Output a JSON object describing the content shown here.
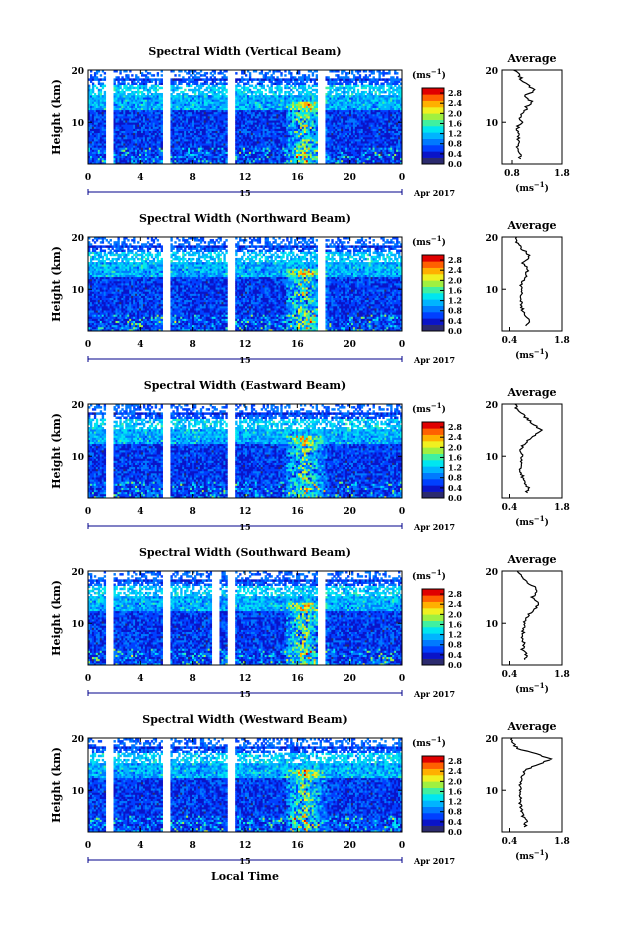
{
  "x_label": "Local Time",
  "date_label": "Apr 2017",
  "day_label": "15",
  "y_label": "Height (km)",
  "unit_label": "(ms",
  "unit_exp": "−1",
  "avg_title": "Average",
  "colors": {
    "scale": [
      "#2b2a6e",
      "#0a14c8",
      "#0040ff",
      "#007aff",
      "#00b4ff",
      "#00e6f0",
      "#40f0a0",
      "#a0f040",
      "#f0f020",
      "#ffb000",
      "#ff6000",
      "#e00000"
    ],
    "line": "#000000",
    "tick": "#00008b"
  },
  "chart_data": [
    {
      "type": "heatmap",
      "title": "Spectral Width (Vertical Beam)",
      "x_ticks": [
        "0",
        "4",
        "8",
        "12",
        "16",
        "20",
        "0"
      ],
      "y_ticks": [
        "20",
        "10"
      ],
      "xlim": [
        0,
        24
      ],
      "ylim": [
        2,
        20
      ],
      "colorbar_ticks": [
        "2.8",
        "2.4",
        "2.0",
        "1.6",
        "1.2",
        "0.8",
        "0.4",
        "0.0"
      ],
      "gap_hours": [
        1.5,
        5.9,
        10.8,
        17.8
      ],
      "avg": {
        "x_ticks": [
          "0.8",
          "1.8"
        ],
        "y_ticks": [
          "20",
          "10"
        ],
        "xlim": [
          0.6,
          1.8
        ],
        "heights": [
          3,
          4,
          5,
          6,
          7,
          8,
          9,
          10,
          11,
          12,
          13,
          14,
          15,
          16,
          17,
          18,
          19,
          20
        ],
        "values": [
          0.95,
          0.98,
          0.92,
          0.95,
          0.93,
          0.9,
          0.92,
          0.98,
          0.95,
          1.05,
          1.1,
          1.2,
          1.05,
          1.25,
          1.15,
          1.0,
          0.95,
          0.85
        ]
      }
    },
    {
      "type": "heatmap",
      "title": "Spectral Width (Northward Beam)",
      "x_ticks": [
        "0",
        "4",
        "8",
        "12",
        "16",
        "20",
        "0"
      ],
      "y_ticks": [
        "20",
        "10"
      ],
      "xlim": [
        0,
        24
      ],
      "ylim": [
        2,
        20
      ],
      "colorbar_ticks": [
        "2.8",
        "2.4",
        "2.0",
        "1.6",
        "1.2",
        "0.8",
        "0.4",
        "0.0"
      ],
      "gap_hours": [
        5.9,
        10.8,
        17.8
      ],
      "avg": {
        "x_ticks": [
          "0.4",
          "1.8"
        ],
        "y_ticks": [
          "20",
          "10"
        ],
        "xlim": [
          0.2,
          1.8
        ],
        "heights": [
          3,
          4,
          5,
          6,
          7,
          8,
          9,
          10,
          11,
          12,
          13,
          14,
          15,
          16,
          17,
          18,
          19,
          20
        ],
        "values": [
          0.8,
          0.95,
          0.8,
          0.75,
          0.72,
          0.7,
          0.72,
          0.75,
          0.7,
          0.8,
          0.85,
          0.9,
          0.75,
          0.95,
          0.85,
          0.7,
          0.6,
          0.55
        ]
      }
    },
    {
      "type": "heatmap",
      "title": "Spectral Width (Eastward Beam)",
      "x_ticks": [
        "0",
        "4",
        "8",
        "12",
        "16",
        "20",
        "0"
      ],
      "y_ticks": [
        "20",
        "10"
      ],
      "xlim": [
        0,
        24
      ],
      "ylim": [
        2,
        20
      ],
      "colorbar_ticks": [
        "2.8",
        "2.4",
        "2.0",
        "1.6",
        "1.2",
        "0.8",
        "0.4",
        "0.0"
      ],
      "gap_hours": [
        1.5,
        5.9,
        10.8
      ],
      "avg": {
        "x_ticks": [
          "0.4",
          "1.8"
        ],
        "y_ticks": [
          "20",
          "10"
        ],
        "xlim": [
          0.2,
          1.8
        ],
        "heights": [
          3,
          4,
          5,
          6,
          7,
          8,
          9,
          10,
          11,
          12,
          13,
          14,
          15,
          16,
          17,
          18,
          19,
          20
        ],
        "values": [
          0.85,
          0.9,
          0.8,
          0.75,
          0.7,
          0.68,
          0.7,
          0.72,
          0.7,
          0.75,
          0.9,
          1.1,
          1.25,
          1.05,
          0.9,
          0.75,
          0.6,
          0.55
        ]
      }
    },
    {
      "type": "heatmap",
      "title": "Spectral Width (Southward Beam)",
      "x_ticks": [
        "0",
        "4",
        "8",
        "12",
        "16",
        "20",
        "0"
      ],
      "y_ticks": [
        "20",
        "10"
      ],
      "xlim": [
        0,
        24
      ],
      "ylim": [
        2,
        20
      ],
      "colorbar_ticks": [
        "2.8",
        "2.4",
        "2.0",
        "1.6",
        "1.2",
        "0.8",
        "0.4",
        "0.0"
      ],
      "gap_hours": [
        1.5,
        5.9,
        9.7,
        10.8,
        17.8
      ],
      "avg": {
        "x_ticks": [
          "0.4",
          "1.8"
        ],
        "y_ticks": [
          "20",
          "10"
        ],
        "xlim": [
          0.2,
          1.8
        ],
        "heights": [
          3,
          4,
          5,
          6,
          7,
          8,
          9,
          10,
          11,
          12,
          13,
          14,
          15,
          16,
          17,
          18,
          19,
          20
        ],
        "values": [
          0.8,
          0.85,
          0.75,
          0.8,
          0.72,
          0.75,
          0.78,
          0.8,
          0.85,
          0.95,
          1.1,
          1.2,
          1.0,
          1.15,
          1.05,
          0.85,
          0.7,
          0.6
        ]
      }
    },
    {
      "type": "heatmap",
      "title": "Spectral Width (Westward Beam)",
      "x_ticks": [
        "0",
        "4",
        "8",
        "12",
        "16",
        "20",
        "0"
      ],
      "y_ticks": [
        "20",
        "10"
      ],
      "xlim": [
        0,
        24
      ],
      "ylim": [
        2,
        20
      ],
      "colorbar_ticks": [
        "2.8",
        "2.4",
        "2.0",
        "1.6",
        "1.2",
        "0.8",
        "0.4",
        "0.0"
      ],
      "gap_hours": [
        1.5,
        5.9,
        10.8
      ],
      "avg": {
        "x_ticks": [
          "0.4",
          "1.8"
        ],
        "y_ticks": [
          "20",
          "10"
        ],
        "xlim": [
          0.2,
          1.8
        ],
        "heights": [
          3,
          4,
          5,
          6,
          7,
          8,
          9,
          10,
          11,
          12,
          13,
          14,
          15,
          16,
          17,
          18,
          19,
          20
        ],
        "values": [
          0.8,
          0.85,
          0.75,
          0.72,
          0.7,
          0.68,
          0.7,
          0.7,
          0.68,
          0.7,
          0.75,
          0.85,
          1.2,
          1.5,
          1.1,
          0.6,
          0.5,
          0.45
        ]
      }
    }
  ]
}
